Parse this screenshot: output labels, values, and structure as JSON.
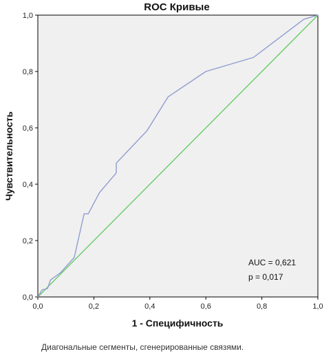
{
  "chart_data": {
    "type": "line",
    "title": "ROC Кривые",
    "xlabel": "1 - Специфичность",
    "ylabel": "Чувствительность",
    "xlim": [
      0,
      1
    ],
    "ylim": [
      0,
      1
    ],
    "x_ticks": [
      "0,0",
      "0,2",
      "0,4",
      "0,6",
      "0,8",
      "1,0"
    ],
    "y_ticks": [
      "0,0",
      "0,2",
      "0,4",
      "0,6",
      "0,8",
      "1,0"
    ],
    "grid": false,
    "series": [
      {
        "color": "#8e9bd0",
        "x": [
          0.0,
          0.015,
          0.035,
          0.045,
          0.08,
          0.13,
          0.165,
          0.18,
          0.22,
          0.28,
          0.28,
          0.39,
          0.465,
          0.6,
          0.77,
          0.95,
          1.0
        ],
        "y": [
          0.0,
          0.025,
          0.03,
          0.06,
          0.085,
          0.14,
          0.295,
          0.295,
          0.37,
          0.44,
          0.475,
          0.59,
          0.71,
          0.8,
          0.85,
          0.985,
          1.0
        ]
      },
      {
        "color": "#66cc66",
        "x": [
          0,
          1
        ],
        "y": [
          0,
          1
        ]
      }
    ],
    "annotations": [
      "AUC = 0,621",
      "p = 0,017"
    ],
    "footnote": "Диагональные сегменты, сгенерированные связями."
  }
}
